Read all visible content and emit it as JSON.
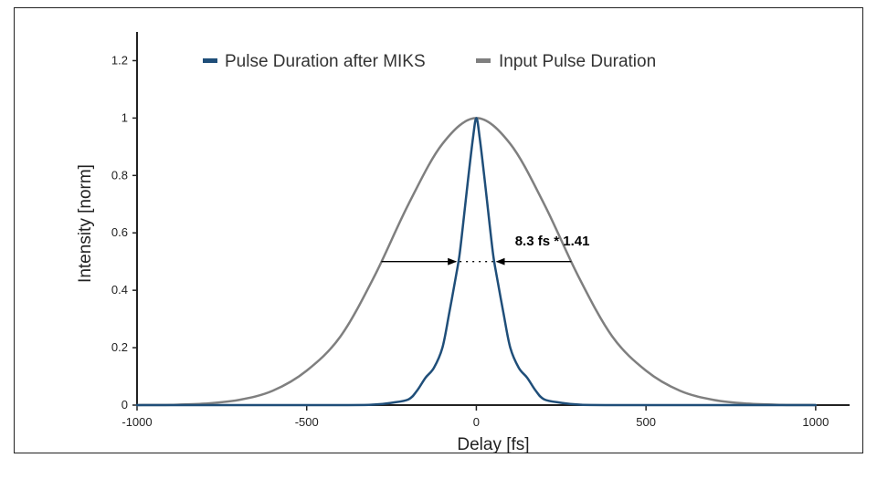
{
  "chart_data": {
    "type": "line",
    "title": "",
    "xlabel": "Delay [fs]",
    "ylabel": "Intensity [norm]",
    "xlim": [
      -1000,
      1100
    ],
    "ylim": [
      0,
      1.3
    ],
    "xticks": [
      -1000,
      -500,
      0,
      500,
      1000
    ],
    "xtick_labels": [
      "-1000",
      "-500",
      "0",
      "500",
      "1000"
    ],
    "yticks": [
      0,
      0.2,
      0.4,
      0.6,
      0.8,
      1,
      1.2
    ],
    "ytick_labels": [
      "0",
      "0.2",
      "0.4",
      "0.6",
      "0.8",
      "1",
      "1.2"
    ],
    "grid": false,
    "legend_position": "top",
    "series": [
      {
        "name": "Pulse Duration after MIKS",
        "color": "#1f4e79",
        "x": [
          -1000,
          -400,
          -300,
          -250,
          -200,
          -175,
          -150,
          -125,
          -100,
          -80,
          -60,
          -50,
          -40,
          -25,
          -10,
          0,
          10,
          25,
          40,
          50,
          60,
          80,
          100,
          125,
          150,
          175,
          200,
          250,
          300,
          400,
          1000
        ],
        "y": [
          0,
          0,
          0.002,
          0.008,
          0.02,
          0.05,
          0.095,
          0.13,
          0.2,
          0.32,
          0.45,
          0.52,
          0.62,
          0.78,
          0.93,
          1.0,
          0.93,
          0.78,
          0.62,
          0.52,
          0.45,
          0.32,
          0.2,
          0.13,
          0.095,
          0.05,
          0.02,
          0.008,
          0.002,
          0,
          0
        ]
      },
      {
        "name": "Input Pulse Duration",
        "color": "#7f7f7f",
        "x": [
          -1000,
          -900,
          -800,
          -700,
          -600,
          -500,
          -400,
          -300,
          -200,
          -100,
          0,
          100,
          200,
          300,
          400,
          500,
          600,
          700,
          800,
          900,
          1000
        ],
        "y": [
          0.0002,
          0.001,
          0.005,
          0.018,
          0.05,
          0.12,
          0.24,
          0.45,
          0.7,
          0.91,
          1.0,
          0.91,
          0.7,
          0.45,
          0.24,
          0.12,
          0.05,
          0.018,
          0.005,
          0.001,
          0.0002
        ]
      }
    ],
    "annotations": [
      {
        "text": "8.3 fs * 1.41",
        "arrow_y": 0.5,
        "outer_x": [
          -280,
          280
        ],
        "inner_x": [
          -60,
          60
        ]
      }
    ]
  }
}
